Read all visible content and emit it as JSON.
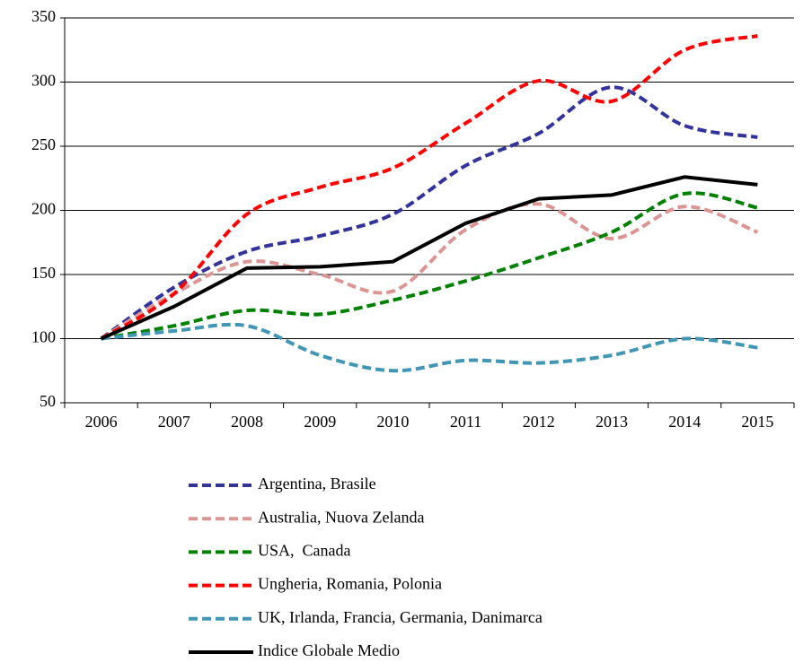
{
  "chart_data": {
    "type": "line",
    "categories": [
      "2006",
      "2007",
      "2008",
      "2009",
      "2010",
      "2011",
      "2012",
      "2013",
      "2014",
      "2015"
    ],
    "series": [
      {
        "name": "Argentina, Brasile",
        "color": "#333399",
        "dashed": true,
        "smooth": true,
        "values": [
          100,
          140,
          168,
          180,
          197,
          235,
          260,
          296,
          266,
          257
        ]
      },
      {
        "name": "Australia, Nuova Zelanda",
        "color": "#d99694",
        "dashed": true,
        "smooth": true,
        "values": [
          100,
          135,
          160,
          150,
          137,
          185,
          205,
          178,
          203,
          183
        ]
      },
      {
        "name": "USA,  Canada",
        "color": "#008000",
        "dashed": true,
        "smooth": true,
        "values": [
          100,
          110,
          122,
          119,
          130,
          145,
          163,
          183,
          213,
          202
        ]
      },
      {
        "name": "Ungheria, Romania, Polonia",
        "color": "#ff0000",
        "dashed": true,
        "smooth": true,
        "values": [
          100,
          135,
          197,
          218,
          233,
          268,
          301,
          285,
          325,
          336
        ]
      },
      {
        "name": "UK, Irlanda, Francia, Germania, Danimarca",
        "color": "#4196b4",
        "dashed": true,
        "smooth": true,
        "values": [
          100,
          106,
          110,
          87,
          75,
          83,
          81,
          87,
          100,
          93
        ]
      },
      {
        "name": "Indice Globale Medio",
        "color": "#000000",
        "dashed": false,
        "smooth": false,
        "values": [
          100,
          125,
          155,
          156,
          160,
          190,
          209,
          212,
          226,
          220
        ]
      }
    ],
    "ylim": [
      50,
      350
    ],
    "yticks": [
      50,
      100,
      150,
      200,
      250,
      300,
      350
    ],
    "grid": true,
    "legend": "bottom"
  }
}
